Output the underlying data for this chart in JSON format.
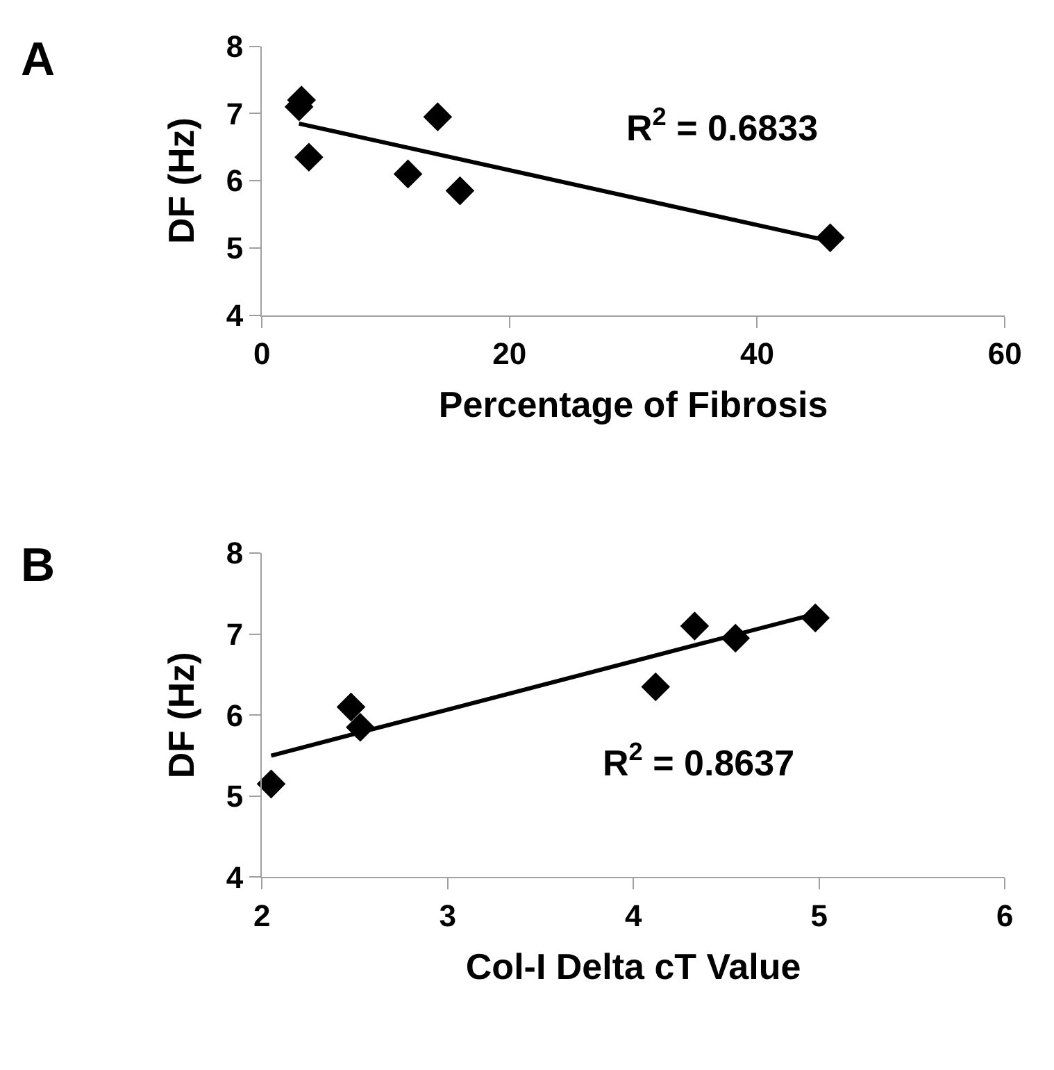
{
  "chart_data": [
    {
      "type": "scatter",
      "title": "A",
      "xlabel": "Percentage of Fibrosis",
      "ylabel": "DF (Hz)",
      "xlim": [
        0,
        60
      ],
      "xticks": [
        0,
        20,
        40,
        60
      ],
      "ylim": [
        4,
        8
      ],
      "yticks": [
        4,
        5,
        6,
        7,
        8
      ],
      "annotations": [
        "R$^{2}$ = 0.6833"
      ],
      "series": [
        {
          "marker": "diamond",
          "color": "#000000",
          "x": [
            3,
            3.2,
            3.8,
            11.8,
            14.2,
            16,
            45.9
          ],
          "values": [
            7.1,
            7.2,
            6.35,
            6.1,
            6.95,
            5.85,
            5.15
          ]
        },
        {
          "type": "line",
          "marker": "none",
          "line_style": "solid",
          "color": "#000000",
          "x": [
            3,
            45.9
          ],
          "values": [
            6.85,
            5.1
          ]
        }
      ]
    },
    {
      "type": "scatter",
      "title": "B",
      "xlabel": "Col-I Delta cT Value",
      "ylabel": "DF (Hz)",
      "xlim": [
        2,
        6
      ],
      "xticks": [
        2,
        3,
        4,
        5,
        6
      ],
      "ylim": [
        4,
        8
      ],
      "yticks": [
        4,
        5,
        6,
        7,
        8
      ],
      "annotations": [
        "R$^{2}$ = 0.8637"
      ],
      "series": [
        {
          "marker": "diamond",
          "color": "#000000",
          "x": [
            2.05,
            2.48,
            2.53,
            4.12,
            4.33,
            4.55,
            4.98
          ],
          "values": [
            5.15,
            6.1,
            5.85,
            6.35,
            7.1,
            6.95,
            7.2
          ]
        },
        {
          "type": "line",
          "marker": "none",
          "line_style": "solid",
          "color": "#000000",
          "x": [
            2.05,
            4.98
          ],
          "values": [
            5.5,
            7.25
          ]
        }
      ]
    }
  ]
}
